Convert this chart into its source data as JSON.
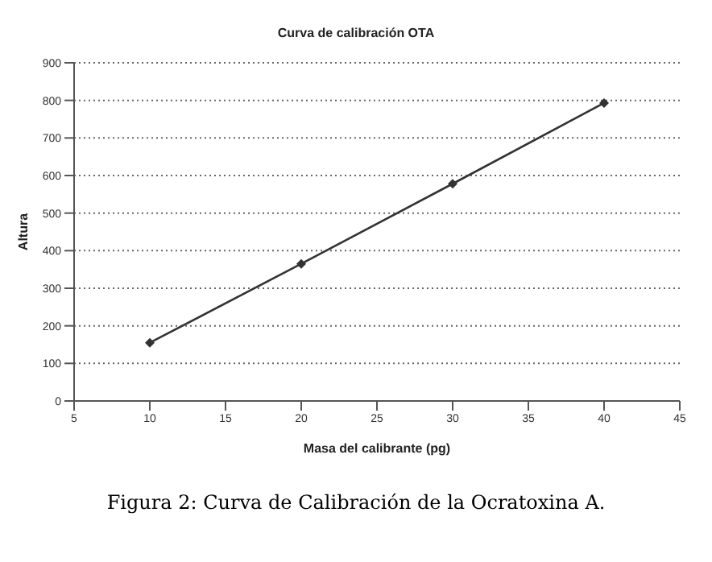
{
  "chart_data": {
    "type": "line",
    "title": "Curva de calibración OTA",
    "xlabel": "Masa del calibrante (pg)",
    "ylabel": "Altura",
    "x": [
      10,
      20,
      30,
      40
    ],
    "values": [
      155,
      365,
      578,
      793
    ],
    "color": "#333333",
    "xlim": [
      5,
      45
    ],
    "xticks": [
      5,
      10,
      15,
      20,
      25,
      30,
      35,
      40,
      45
    ],
    "ylim": [
      0,
      900
    ],
    "yticks": [
      0,
      100,
      200,
      300,
      400,
      500,
      600,
      700,
      800,
      900
    ],
    "grid": "y",
    "marker": "diamond",
    "line_style": "solid",
    "annotations": [
      "Figura 2: Curva de Calibración de la Ocratoxina A."
    ]
  }
}
